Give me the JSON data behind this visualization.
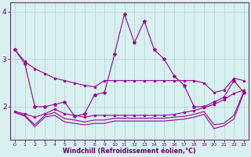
{
  "x": [
    0,
    1,
    2,
    3,
    4,
    5,
    6,
    7,
    8,
    9,
    10,
    11,
    12,
    13,
    14,
    15,
    16,
    17,
    18,
    19,
    20,
    21,
    22,
    23
  ],
  "line1": [
    3.2,
    2.9,
    2.0,
    2.0,
    2.05,
    2.1,
    1.8,
    1.85,
    2.25,
    2.3,
    3.1,
    3.95,
    3.35,
    3.8,
    3.2,
    3.0,
    2.65,
    2.45,
    2.0,
    2.0,
    2.1,
    2.2,
    2.55,
    2.3
  ],
  "line2": [
    3.2,
    2.95,
    2.8,
    2.7,
    2.6,
    2.55,
    2.5,
    2.45,
    2.42,
    2.55,
    2.55,
    2.55,
    2.55,
    2.55,
    2.55,
    2.55,
    2.55,
    2.55,
    2.55,
    2.5,
    2.3,
    2.35,
    2.6,
    2.55
  ],
  "line3": [
    1.9,
    1.85,
    1.78,
    1.85,
    1.95,
    1.85,
    1.82,
    1.78,
    1.82,
    1.82,
    1.82,
    1.82,
    1.82,
    1.82,
    1.82,
    1.82,
    1.84,
    1.88,
    1.92,
    1.98,
    2.05,
    2.15,
    2.28,
    2.35
  ],
  "line4": [
    1.88,
    1.82,
    1.62,
    1.82,
    1.88,
    1.75,
    1.72,
    1.68,
    1.72,
    1.72,
    1.76,
    1.76,
    1.76,
    1.76,
    1.76,
    1.76,
    1.78,
    1.8,
    1.84,
    1.9,
    1.62,
    1.65,
    1.82,
    2.32
  ],
  "line5": [
    1.88,
    1.8,
    1.58,
    1.78,
    1.82,
    1.68,
    1.65,
    1.62,
    1.65,
    1.65,
    1.7,
    1.7,
    1.7,
    1.7,
    1.7,
    1.7,
    1.72,
    1.74,
    1.78,
    1.84,
    1.54,
    1.6,
    1.74,
    2.3
  ],
  "line_color": "#990099",
  "marker": "*",
  "bg_color": "#d8f0f0",
  "grid_color": "#b0d0d0",
  "axis_color": "#663366",
  "xlabel": "Windchill (Refroidissement éolien,°C)",
  "xlabel_color": "#660066",
  "tick_color": "#660066",
  "xlim": [
    -0.5,
    23.5
  ],
  "ylim": [
    1.3,
    4.2
  ],
  "yticks": [
    2,
    3,
    4
  ],
  "xticks": [
    0,
    1,
    2,
    3,
    4,
    5,
    6,
    7,
    8,
    9,
    10,
    11,
    12,
    13,
    14,
    15,
    16,
    17,
    18,
    19,
    20,
    21,
    22,
    23
  ]
}
